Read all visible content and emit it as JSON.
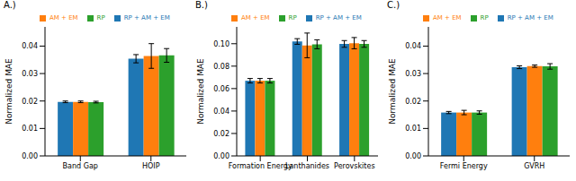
{
  "chart_data": [
    {
      "type": "bar",
      "title": "A.)",
      "y_label": "Normalized MAE",
      "categories": [
        "Band Gap",
        "HOIP"
      ],
      "series": [
        {
          "name": "RP + AM + EM",
          "color": "#1f77b4",
          "values": [
            0.0197,
            0.0354
          ],
          "errors": [
            0.0003,
            0.0015
          ]
        },
        {
          "name": "AM + EM",
          "color": "#ff7f0e",
          "values": [
            0.0197,
            0.0364
          ],
          "errors": [
            0.0003,
            0.0045
          ]
        },
        {
          "name": "RP",
          "color": "#2ca02c",
          "values": [
            0.0196,
            0.0366
          ],
          "errors": [
            0.0003,
            0.0025
          ]
        }
      ],
      "ylim": [
        0,
        0.047
      ],
      "yticks": [
        {
          "value": 0,
          "label": "0.00"
        },
        {
          "value": 0.01,
          "label": "0.01"
        },
        {
          "value": 0.02,
          "label": "0.02"
        },
        {
          "value": 0.03,
          "label": "0.03"
        },
        {
          "value": 0.04,
          "label": "0.04"
        }
      ],
      "legend": "upper left"
    },
    {
      "type": "bar",
      "title": "B.)",
      "y_label": "Normalized MAE",
      "categories": [
        "Formation Energy",
        "Lanthanides",
        "Perovskites"
      ],
      "series": [
        {
          "name": "RP + AM + EM",
          "color": "#1f77b4",
          "values": [
            0.067,
            0.102,
            0.0998
          ],
          "errors": [
            0.002,
            0.0025,
            0.003
          ]
        },
        {
          "name": "AM + EM",
          "color": "#ff7f0e",
          "values": [
            0.067,
            0.0985,
            0.1005
          ],
          "errors": [
            0.002,
            0.011,
            0.005
          ]
        },
        {
          "name": "RP",
          "color": "#2ca02c",
          "values": [
            0.067,
            0.0995,
            0.0998
          ],
          "errors": [
            0.002,
            0.004,
            0.003
          ]
        }
      ],
      "ylim": [
        0,
        0.115
      ],
      "yticks": [
        {
          "value": 0,
          "label": "0.00"
        },
        {
          "value": 0.02,
          "label": "0.02"
        },
        {
          "value": 0.04,
          "label": "0.04"
        },
        {
          "value": 0.06,
          "label": "0.06"
        },
        {
          "value": 0.08,
          "label": "0.08"
        },
        {
          "value": 0.1,
          "label": "0.10"
        }
      ],
      "legend": "upper left"
    },
    {
      "type": "bar",
      "title": "C.)",
      "y_label": "Normalized MAE",
      "categories": [
        "Fermi Energy",
        "GVRH"
      ],
      "series": [
        {
          "name": "RP + AM + EM",
          "color": "#1f77b4",
          "values": [
            0.0158,
            0.0323
          ],
          "errors": [
            0.0004,
            0.0005
          ]
        },
        {
          "name": "AM + EM",
          "color": "#ff7f0e",
          "values": [
            0.0158,
            0.0327
          ],
          "errors": [
            0.0008,
            0.0004
          ]
        },
        {
          "name": "RP",
          "color": "#2ca02c",
          "values": [
            0.0158,
            0.0326
          ],
          "errors": [
            0.0006,
            0.001
          ]
        }
      ],
      "ylim": [
        0,
        0.047
      ],
      "yticks": [
        {
          "value": 0,
          "label": "0.00"
        },
        {
          "value": 0.01,
          "label": "0.01"
        },
        {
          "value": 0.02,
          "label": "0.02"
        },
        {
          "value": 0.03,
          "label": "0.03"
        },
        {
          "value": 0.04,
          "label": "0.04"
        }
      ],
      "legend": "upper left"
    }
  ]
}
